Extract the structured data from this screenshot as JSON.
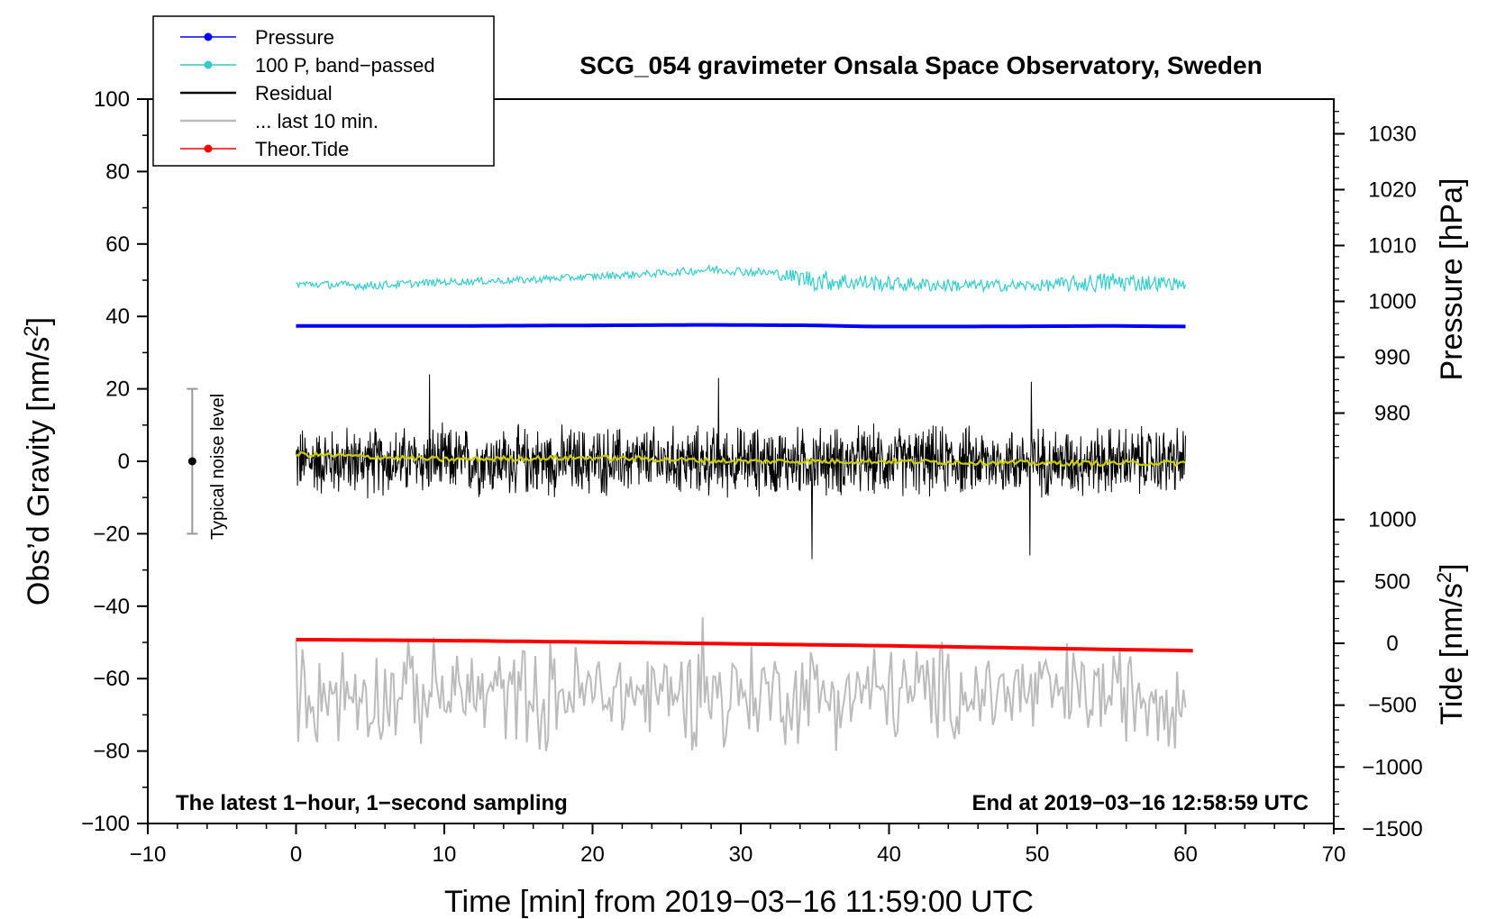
{
  "chart_data": {
    "type": "line",
    "title": "SCG_054 gravimeter Onsala Space Observatory, Sweden",
    "xlabel": "Time [min] from 2019−03−16 11:59:00 UTC",
    "ylabel_left": "Obs’d Gravity [nm/s²]",
    "ylabel_left_base": "Obs’d Gravity [nm/s",
    "ylabel_left_sup": "2",
    "ylabel_left_end": "]",
    "ylabel_right_pressure": "Pressure [hPa]",
    "ylabel_right_tide": "Tide [nm/s²]",
    "ylabel_right_tide_base": "Tide [nm/s",
    "ylabel_right_tide_sup": "2",
    "ylabel_right_tide_end": "]",
    "bottom_left_note": "The latest 1−hour, 1−second sampling",
    "bottom_right_note": "End at 2019−03−16 12:58:59 UTC",
    "noise_label": "Typical noise level",
    "noise_bar": {
      "x": -7,
      "center": 0,
      "half_range": 20
    },
    "xlim": [
      -10,
      70
    ],
    "ylim": [
      -100,
      100
    ],
    "pressure_axis_range": [
      970,
      1035
    ],
    "tide_axis_range": [
      -1500,
      1000
    ],
    "x_ticks": [
      -10,
      0,
      10,
      20,
      30,
      40,
      50,
      60,
      70
    ],
    "x_tick_labels": [
      "−10",
      "0",
      "10",
      "20",
      "30",
      "40",
      "50",
      "60",
      "70"
    ],
    "y_left_ticks": [
      100,
      80,
      60,
      40,
      20,
      0,
      -20,
      -40,
      -60,
      -80,
      -100
    ],
    "y_left_tick_labels": [
      "100",
      "80",
      "60",
      "40",
      "20",
      "0",
      "−20",
      "−40",
      "−60",
      "−80",
      "−100"
    ],
    "pressure_ticks": [
      1030,
      1020,
      1010,
      1000,
      990,
      980
    ],
    "pressure_tick_labels": [
      "1030",
      "1020",
      "1010",
      "1000",
      "990",
      "980"
    ],
    "tide_ticks": [
      1000,
      500,
      0,
      -500,
      -1000,
      -1500
    ],
    "tide_tick_labels": [
      "1000",
      "500",
      "0",
      "−500",
      "−1000",
      "−1500"
    ],
    "legend": [
      {
        "label": "Pressure",
        "color": "#0000ff",
        "marker": true
      },
      {
        "label": "100 P, band−passed",
        "color": "#33cccc",
        "marker": true
      },
      {
        "label": "Residual",
        "color": "#000000",
        "marker": false
      },
      {
        "label": "... last 10 min.",
        "color": "#bbbbbb",
        "marker": false
      },
      {
        "label": "Theor.Tide",
        "color": "#ff0000",
        "marker": true
      }
    ],
    "series": [
      {
        "name": "Pressure",
        "axis": "pressure",
        "color": "#0000ff",
        "x": [
          0,
          10,
          20,
          28,
          35,
          38.5,
          45,
          55,
          60
        ],
        "y": [
          995.6,
          995.6,
          995.7,
          995.8,
          995.7,
          995.5,
          995.5,
          995.6,
          995.5
        ]
      },
      {
        "name": "100 P, band−passed",
        "axis": "gravity",
        "color": "#33cccc",
        "x": [
          0,
          5,
          10,
          15,
          20,
          25,
          28,
          32,
          35,
          40,
          45,
          50,
          55,
          60
        ],
        "y": [
          49,
          48.5,
          49.5,
          50,
          51,
          52,
          53,
          52,
          50,
          49,
          48.5,
          48.5,
          49.5,
          49
        ],
        "noise_amplitude": [
          1.0,
          1.2,
          1.0,
          1.0,
          1.0,
          1.0,
          1.2,
          1.2,
          3.0,
          2.0,
          1.8,
          1.5,
          3.0,
          1.5
        ]
      },
      {
        "name": "Residual",
        "axis": "gravity",
        "color": "#000000",
        "x": [
          0,
          60
        ],
        "y": [
          0,
          0
        ],
        "noise_amplitude": 9,
        "extremes": [
          {
            "x": 9,
            "y": 24
          },
          {
            "x": 28.5,
            "y": 23
          },
          {
            "x": 34.8,
            "y": -27
          },
          {
            "x": 49.5,
            "y": -26
          },
          {
            "x": 49.6,
            "y": 22
          }
        ]
      },
      {
        "name": "Residual smoothed",
        "axis": "gravity",
        "color": "#cccc00",
        "x": [
          0,
          10,
          20,
          30,
          40,
          50,
          60
        ],
        "y": [
          2,
          0.5,
          1,
          0,
          0,
          -0.5,
          -0.5
        ]
      },
      {
        "name": "... last 10 min.",
        "axis": "gravity",
        "color": "#bbbbbb",
        "x": [
          0,
          60
        ],
        "y": [
          -64,
          -64
        ],
        "noise_amplitude": 14,
        "extremes": [
          {
            "x": 16.9,
            "y": -80
          },
          {
            "x": 27.5,
            "y": -43
          },
          {
            "x": 28.9,
            "y": -79
          }
        ]
      },
      {
        "name": "Theor.Tide",
        "axis": "tide",
        "color": "#ff0000",
        "x": [
          0,
          10,
          20,
          30,
          40,
          50,
          60.5
        ],
        "y": [
          30,
          22,
          10,
          -5,
          -20,
          -40,
          -60
        ]
      }
    ]
  }
}
